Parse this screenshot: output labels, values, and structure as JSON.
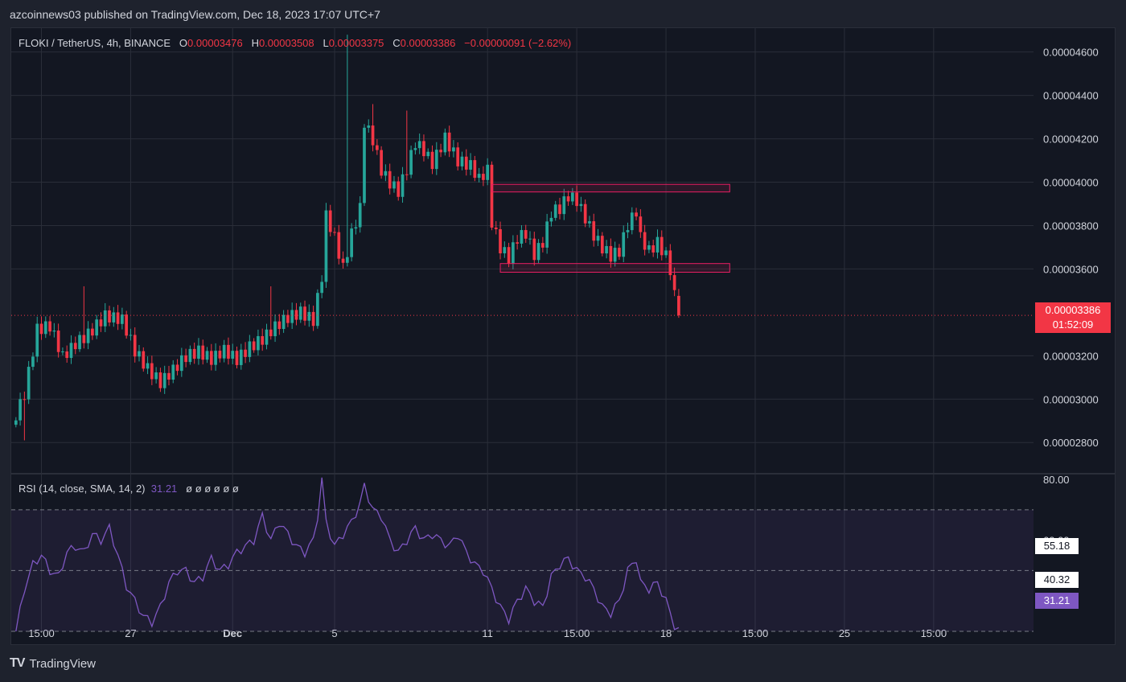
{
  "header": {
    "publisher": "azcoinnews03 published on TradingView.com, Dec 18, 2023 17:07 UTC+7"
  },
  "legend": {
    "symbol": "FLOKI / TetherUS, 4h, BINANCE",
    "o_label": "O",
    "o_value": "0.00003476",
    "h_label": "H",
    "h_value": "0.00003508",
    "l_label": "L",
    "l_value": "0.00003375",
    "c_label": "C",
    "c_value": "0.00003386",
    "change": "−0.00000091 (−2.62%)"
  },
  "rsi_legend": {
    "label": "RSI (14, close, SMA, 14, 2)",
    "value": "31.21",
    "extras": "ø ø ø ø ø ø"
  },
  "price_tag": {
    "price": "0.00003386",
    "countdown": "01:52:09"
  },
  "rsi_tags": {
    "ma": "55.18",
    "level": "40.32",
    "rsi": "31.21"
  },
  "footer": {
    "logo": "TV",
    "brand": "TradingView"
  },
  "colors": {
    "bg": "#131722",
    "up": "#26a69a",
    "down": "#f23645",
    "grid": "#2a2e39",
    "text": "#d1d4dc",
    "rsi": "#7e57c2",
    "box": "#e91e63"
  },
  "chart_data": {
    "type": "candlestick",
    "price_axis": {
      "ylim": [
        2.66e-05,
        4.71e-05
      ],
      "ticks": [
        4.6e-05,
        4.4e-05,
        4.2e-05,
        4e-05,
        3.8e-05,
        3.6e-05,
        3.2e-05,
        3e-05,
        2.8e-05
      ],
      "tick_labels": [
        "0.00004600",
        "0.00004400",
        "0.00004200",
        "0.00004000",
        "0.00003800",
        "0.00003600",
        "0.00003200",
        "0.00003000",
        "0.00002800"
      ]
    },
    "x_ticks": [
      {
        "label": "15:00",
        "index": 6,
        "bold": false
      },
      {
        "label": "27",
        "index": 27,
        "bold": false
      },
      {
        "label": "Dec",
        "index": 51,
        "bold": true
      },
      {
        "label": "5",
        "index": 75,
        "bold": false
      },
      {
        "label": "11",
        "index": 111,
        "bold": false
      },
      {
        "label": "15:00",
        "index": 132,
        "bold": false
      },
      {
        "label": "18",
        "index": 153,
        "bold": false
      },
      {
        "label": "15:00",
        "index": 174,
        "bold": false
      },
      {
        "label": "25",
        "index": 195,
        "bold": false
      },
      {
        "label": "15:00",
        "index": 216,
        "bold": false
      }
    ],
    "x_range": [
      -1.1,
      239.5
    ],
    "close_waypoints": [
      [
        0,
        2.92e-05
      ],
      [
        2,
        3.02e-05
      ],
      [
        5,
        3.32e-05
      ],
      [
        8,
        3.34e-05
      ],
      [
        11,
        3.2e-05
      ],
      [
        14,
        3.26e-05
      ],
      [
        17,
        3.3e-05
      ],
      [
        21,
        3.38e-05
      ],
      [
        25,
        3.36e-05
      ],
      [
        28,
        3.22e-05
      ],
      [
        31,
        3.14e-05
      ],
      [
        34,
        3.08e-05
      ],
      [
        37,
        3.14e-05
      ],
      [
        40,
        3.2e-05
      ],
      [
        43,
        3.22e-05
      ],
      [
        46,
        3.18e-05
      ],
      [
        49,
        3.22e-05
      ],
      [
        52,
        3.18e-05
      ],
      [
        55,
        3.24e-05
      ],
      [
        58,
        3.28e-05
      ],
      [
        61,
        3.34e-05
      ],
      [
        64,
        3.38e-05
      ],
      [
        67,
        3.4e-05
      ],
      [
        70,
        3.36e-05
      ],
      [
        72,
        3.56e-05
      ],
      [
        73,
        3.84e-05
      ],
      [
        75,
        3.74e-05
      ],
      [
        77,
        3.6e-05
      ],
      [
        79,
        3.76e-05
      ],
      [
        81,
        3.88e-05
      ],
      [
        82,
        4.28e-05
      ],
      [
        84,
        4.2e-05
      ],
      [
        86,
        4.06e-05
      ],
      [
        88,
        4e-05
      ],
      [
        90,
        3.96e-05
      ],
      [
        92,
        4.06e-05
      ],
      [
        94,
        4.18e-05
      ],
      [
        96,
        4.14e-05
      ],
      [
        98,
        4.08e-05
      ],
      [
        101,
        4.2e-05
      ],
      [
        104,
        4.1e-05
      ],
      [
        107,
        4.08e-05
      ],
      [
        109,
        4.02e-05
      ],
      [
        111,
        4.06e-05
      ],
      [
        112,
        3.82e-05
      ],
      [
        114,
        3.7e-05
      ],
      [
        116,
        3.65e-05
      ],
      [
        118,
        3.74e-05
      ],
      [
        120,
        3.76e-05
      ],
      [
        122,
        3.66e-05
      ],
      [
        124,
        3.72e-05
      ],
      [
        126,
        3.86e-05
      ],
      [
        128,
        3.88e-05
      ],
      [
        130,
        3.94e-05
      ],
      [
        132,
        3.92e-05
      ],
      [
        134,
        3.84e-05
      ],
      [
        136,
        3.76e-05
      ],
      [
        138,
        3.7e-05
      ],
      [
        140,
        3.66e-05
      ],
      [
        142,
        3.68e-05
      ],
      [
        144,
        3.8e-05
      ],
      [
        146,
        3.86e-05
      ],
      [
        147,
        3.74e-05
      ],
      [
        149,
        3.68e-05
      ],
      [
        151,
        3.72e-05
      ],
      [
        153,
        3.66e-05
      ],
      [
        154,
        3.6e-05
      ],
      [
        155,
        3.48e-05
      ],
      [
        156,
        3.39e-05
      ]
    ],
    "spikes": [
      [
        78,
        4.68e-05
      ],
      [
        84,
        4.36e-05
      ],
      [
        92,
        4.33e-05
      ],
      [
        60,
        3.52e-05
      ],
      [
        16,
        3.52e-05
      ],
      [
        2,
        2.81e-05
      ]
    ],
    "last": {
      "open": 3.476e-05,
      "high": 3.508e-05,
      "low": 3.375e-05,
      "close": 3.386e-05
    },
    "last_price": 3.386e-05,
    "zones": [
      {
        "x": [
          112,
          168
        ],
        "y": [
          3.955e-05,
          3.99e-05
        ]
      },
      {
        "x": [
          114,
          168
        ],
        "y": [
          3.585e-05,
          3.625e-05
        ]
      }
    ],
    "rsi": {
      "name": "RSI (14, close, SMA, 14, 2)",
      "ylim": [
        30.0,
        81.6
      ],
      "ticks": [
        80,
        60
      ],
      "tick_labels": [
        "80.00",
        "60.00"
      ],
      "bands": [
        70,
        50,
        30
      ],
      "waypoints": [
        [
          0,
          30
        ],
        [
          2,
          44
        ],
        [
          4,
          52
        ],
        [
          6,
          55
        ],
        [
          8,
          50
        ],
        [
          10,
          48
        ],
        [
          12,
          56
        ],
        [
          14,
          58
        ],
        [
          16,
          56
        ],
        [
          18,
          62
        ],
        [
          20,
          60
        ],
        [
          22,
          64
        ],
        [
          24,
          55
        ],
        [
          26,
          45
        ],
        [
          28,
          40
        ],
        [
          30,
          35
        ],
        [
          32,
          33
        ],
        [
          34,
          38
        ],
        [
          36,
          46
        ],
        [
          38,
          50
        ],
        [
          40,
          50
        ],
        [
          42,
          46
        ],
        [
          44,
          48
        ],
        [
          46,
          54
        ],
        [
          48,
          50
        ],
        [
          50,
          52
        ],
        [
          52,
          56
        ],
        [
          54,
          58
        ],
        [
          56,
          60
        ],
        [
          58,
          68
        ],
        [
          60,
          60
        ],
        [
          62,
          66
        ],
        [
          64,
          62
        ],
        [
          66,
          58
        ],
        [
          68,
          56
        ],
        [
          70,
          60
        ],
        [
          71,
          68
        ],
        [
          72,
          80
        ],
        [
          73,
          66
        ],
        [
          75,
          58
        ],
        [
          77,
          62
        ],
        [
          79,
          66
        ],
        [
          81,
          72
        ],
        [
          82,
          78
        ],
        [
          84,
          70
        ],
        [
          86,
          68
        ],
        [
          88,
          60
        ],
        [
          90,
          56
        ],
        [
          92,
          60
        ],
        [
          94,
          64
        ],
        [
          96,
          60
        ],
        [
          98,
          62
        ],
        [
          100,
          60
        ],
        [
          102,
          58
        ],
        [
          104,
          62
        ],
        [
          106,
          56
        ],
        [
          108,
          52
        ],
        [
          110,
          50
        ],
        [
          112,
          44
        ],
        [
          114,
          38
        ],
        [
          116,
          34
        ],
        [
          118,
          40
        ],
        [
          120,
          44
        ],
        [
          122,
          40
        ],
        [
          124,
          38
        ],
        [
          126,
          48
        ],
        [
          128,
          52
        ],
        [
          130,
          54
        ],
        [
          132,
          50
        ],
        [
          134,
          48
        ],
        [
          136,
          44
        ],
        [
          138,
          38
        ],
        [
          140,
          36
        ],
        [
          142,
          40
        ],
        [
          144,
          50
        ],
        [
          146,
          54
        ],
        [
          147,
          46
        ],
        [
          149,
          44
        ],
        [
          151,
          46
        ],
        [
          153,
          40
        ],
        [
          155,
          32
        ],
        [
          156,
          31.21
        ]
      ],
      "ma": [
        [
          0,
          55.5
        ],
        [
          40,
          55
        ],
        [
          80,
          56
        ],
        [
          120,
          55.5
        ],
        [
          156,
          55.18
        ]
      ]
    }
  }
}
